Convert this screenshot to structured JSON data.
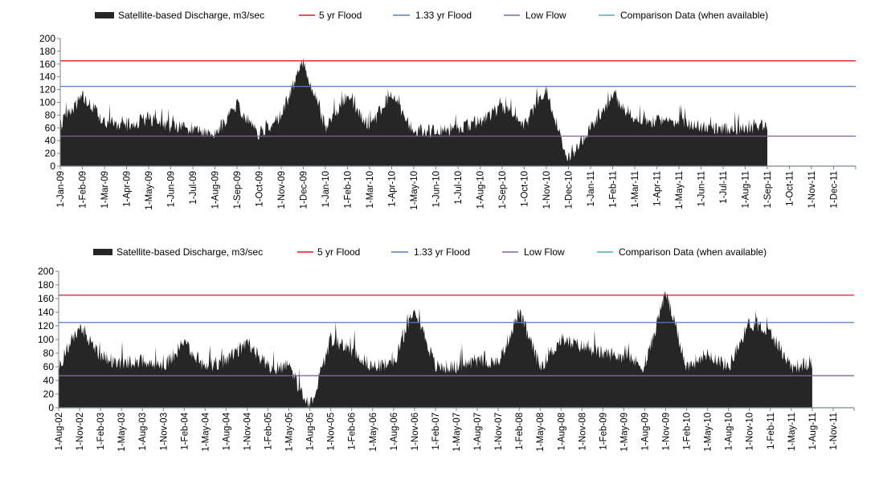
{
  "legend": {
    "discharge": "Satellite-based Discharge, m3/sec",
    "flood5": "5 yr Flood",
    "flood133": "1.33 yr Flood",
    "lowflow": "Low Flow",
    "comparison": "Comparison Data (when available)"
  },
  "colors": {
    "discharge": "#262626",
    "flood5": "#e31a1c",
    "flood133": "#4f81bd",
    "lowflow": "#8064a2",
    "comparison": "#4bacc6",
    "axis": "#808080"
  },
  "chart_data": [
    {
      "type": "area",
      "series": [
        {
          "name": "Satellite-based Discharge, m3/sec"
        },
        {
          "name": "5 yr Flood",
          "value": 165
        },
        {
          "name": "1.33 yr Flood",
          "value": 125
        },
        {
          "name": "Low Flow",
          "value": 47
        },
        {
          "name": "Comparison Data (when available)",
          "value": 0
        }
      ],
      "ylim": [
        0,
        200
      ],
      "yticks": [
        "0",
        "20",
        "40",
        "60",
        "80",
        "100",
        "120",
        "140",
        "160",
        "180",
        "200"
      ],
      "xticks": [
        "1-Jan-09",
        "1-Feb-09",
        "1-Mar-09",
        "1-Apr-09",
        "1-May-09",
        "1-Jun-09",
        "1-Jul-09",
        "1-Aug-09",
        "1-Sep-09",
        "1-Oct-09",
        "1-Nov-09",
        "1-Dec-09",
        "1-Jan-10",
        "1-Feb-10",
        "1-Mar-10",
        "1-Apr-10",
        "1-May-10",
        "1-Jun-10",
        "1-Jul-10",
        "1-Aug-10",
        "1-Sep-10",
        "1-Oct-10",
        "1-Nov-10",
        "1-Dec-10",
        "1-Jan-11",
        "1-Feb-11",
        "1-Mar-11",
        "1-Apr-11",
        "1-May-11",
        "1-Jun-11",
        "1-Jul-11",
        "1-Aug-11",
        "1-Sep-11",
        "1-Oct-11",
        "1-Nov-11",
        "1-Dec-11"
      ],
      "discharge": {
        "x": [
          "1-Jan-09",
          "1-Feb-09",
          "1-Mar-09",
          "1-Apr-09",
          "1-May-09",
          "1-Jun-09",
          "1-Jul-09",
          "1-Aug-09",
          "1-Sep-09",
          "1-Oct-09",
          "1-Nov-09",
          "1-Dec-09",
          "1-Jan-10",
          "1-Feb-10",
          "1-Mar-10",
          "1-Apr-10",
          "1-May-10",
          "1-Jun-10",
          "1-Jul-10",
          "1-Aug-10",
          "1-Sep-10",
          "1-Oct-10",
          "1-Nov-10",
          "1-Dec-10",
          "1-Jan-11",
          "1-Feb-11",
          "1-Mar-11",
          "1-Apr-11",
          "1-May-11",
          "1-Jun-11",
          "1-Jul-11",
          "1-Aug-11",
          "1-Sep-11"
        ],
        "y": [
          65,
          110,
          70,
          65,
          75,
          60,
          60,
          50,
          95,
          50,
          80,
          165,
          60,
          110,
          60,
          115,
          55,
          55,
          60,
          70,
          95,
          65,
          120,
          10,
          60,
          110,
          75,
          70,
          70,
          60,
          60,
          60,
          65
        ]
      }
    },
    {
      "type": "area",
      "series": [
        {
          "name": "Satellite-based Discharge, m3/sec"
        },
        {
          "name": "5 yr Flood",
          "value": 165
        },
        {
          "name": "1.33 yr Flood",
          "value": 125
        },
        {
          "name": "Low Flow",
          "value": 47
        },
        {
          "name": "Comparison Data (when available)",
          "value": 0
        }
      ],
      "ylim": [
        0,
        200
      ],
      "yticks": [
        "0",
        "20",
        "40",
        "60",
        "80",
        "100",
        "120",
        "140",
        "160",
        "180",
        "200"
      ],
      "xticks": [
        "1-Aug-02",
        "1-Nov-02",
        "1-Feb-03",
        "1-May-03",
        "1-Aug-03",
        "1-Nov-03",
        "1-Feb-04",
        "1-May-04",
        "1-Aug-04",
        "1-Nov-04",
        "1-Feb-05",
        "1-May-05",
        "1-Aug-05",
        "1-Nov-05",
        "1-Feb-06",
        "1-May-06",
        "1-Aug-06",
        "1-Nov-06",
        "1-Feb-07",
        "1-May-07",
        "1-Aug-07",
        "1-Nov-07",
        "1-Feb-08",
        "1-May-08",
        "1-Aug-08",
        "1-Nov-08",
        "1-Feb-09",
        "1-May-09",
        "1-Aug-09",
        "1-Nov-09",
        "1-Feb-10",
        "1-May-10",
        "1-Aug-10",
        "1-Nov-10",
        "1-Feb-11",
        "1-May-11",
        "1-Aug-11",
        "1-Nov-11"
      ],
      "discharge": {
        "x": [
          "1-Aug-02",
          "1-Nov-02",
          "1-Feb-03",
          "1-May-03",
          "1-Aug-03",
          "1-Nov-03",
          "1-Feb-04",
          "1-May-04",
          "1-Aug-04",
          "1-Nov-04",
          "1-Feb-05",
          "1-May-05",
          "1-Aug-05",
          "1-Nov-05",
          "1-Feb-06",
          "1-May-06",
          "1-Aug-06",
          "1-Nov-06",
          "1-Feb-07",
          "1-May-07",
          "1-Aug-07",
          "1-Nov-07",
          "1-Feb-08",
          "1-May-08",
          "1-Aug-08",
          "1-Nov-08",
          "1-Feb-09",
          "1-May-09",
          "1-Aug-09",
          "1-Nov-09",
          "1-Feb-10",
          "1-May-10",
          "1-Aug-10",
          "1-Nov-10",
          "1-Feb-11",
          "1-May-11",
          "1-Aug-11"
        ],
        "y": [
          60,
          120,
          75,
          65,
          70,
          60,
          95,
          60,
          70,
          95,
          60,
          60,
          0,
          100,
          85,
          60,
          65,
          150,
          60,
          60,
          70,
          65,
          140,
          60,
          100,
          90,
          80,
          75,
          60,
          170,
          60,
          80,
          60,
          125,
          110,
          60,
          65
        ]
      }
    }
  ]
}
